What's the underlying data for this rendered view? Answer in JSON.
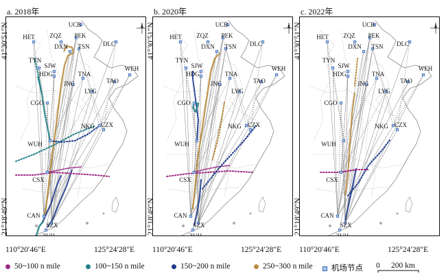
{
  "panels": [
    {
      "title": "a. 2018年",
      "year": 2018
    },
    {
      "title": "b. 2020年",
      "year": 2020
    },
    {
      "title": "c. 2022年",
      "year": 2022
    }
  ],
  "axes": {
    "lat_top": "41°30′51″N",
    "lat_bottom": "21°18′49″N",
    "lon_left": "110°20′46″E",
    "lon_right": "125°24′28″E"
  },
  "cities": [
    "UCB",
    "HET",
    "ZQZ",
    "PEK",
    "DXN",
    "TSN",
    "DLC",
    "TYN",
    "SJW",
    "HDG",
    "TNA",
    "WEH",
    "TAO",
    "JNG",
    "LYG",
    "CGO",
    "NKG",
    "CZX",
    "WUH",
    "CSX",
    "CAN",
    "SZX",
    "ZUH"
  ],
  "legend": [
    {
      "label": "50~100 n mile",
      "color": "#9b2a86"
    },
    {
      "label": "100~150 n mile",
      "color": "#1f7f86"
    },
    {
      "label": "150~200 n mile",
      "color": "#1f3b8f"
    },
    {
      "label": "250~300 n mile",
      "color": "#b88a3a"
    },
    {
      "label": "机场节点",
      "color": "#4a78c4"
    }
  ],
  "scale": {
    "zero": "0",
    "distance": "200 km"
  }
}
